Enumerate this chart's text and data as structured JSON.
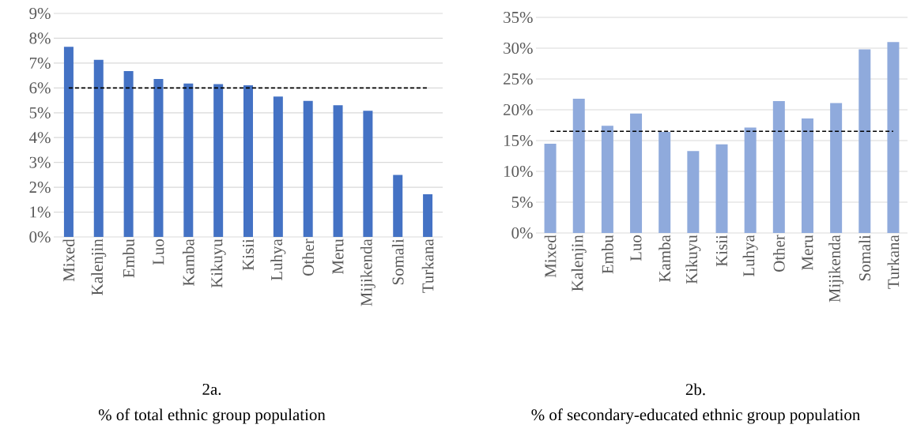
{
  "chart_data": [
    {
      "type": "bar",
      "title": "2a.",
      "subtitle": "% of total ethnic group population",
      "categories": [
        "Mixed",
        "Kalenjin",
        "Embu",
        "Luo",
        "Kamba",
        "Kikuyu",
        "Kisii",
        "Luhya",
        "Other",
        "Meru",
        "Mijikenda",
        "Somali",
        "Turkana"
      ],
      "values": [
        7.66,
        7.13,
        6.68,
        6.36,
        6.18,
        6.15,
        6.11,
        5.65,
        5.48,
        5.3,
        5.08,
        2.5,
        1.72
      ],
      "color": "#4472c4",
      "ylim": [
        0,
        9
      ],
      "yticks": [
        {
          "value": 0,
          "label": "0%"
        },
        {
          "value": 1,
          "label": "1%"
        },
        {
          "value": 2,
          "label": "2%"
        },
        {
          "value": 3,
          "label": "3%"
        },
        {
          "value": 4,
          "label": "4%"
        },
        {
          "value": 5,
          "label": "5%"
        },
        {
          "value": 6,
          "label": "6%"
        },
        {
          "value": 7,
          "label": "7%"
        },
        {
          "value": 8,
          "label": "8%"
        },
        {
          "value": 9,
          "label": "9%"
        }
      ],
      "grid": "y",
      "ref_lines": [
        {
          "axis": "y",
          "value": 6,
          "color": "#000000",
          "line_style": "dashed"
        }
      ]
    },
    {
      "type": "bar",
      "title": "2b.",
      "subtitle": "% of secondary-educated ethnic group population",
      "categories": [
        "Mixed",
        "Kalenjin",
        "Embu",
        "Luo",
        "Kamba",
        "Kikuyu",
        "Kisii",
        "Luhya",
        "Other",
        "Meru",
        "Mijikenda",
        "Somali",
        "Turkana"
      ],
      "values": [
        14.5,
        21.8,
        17.4,
        19.4,
        16.4,
        13.3,
        14.4,
        17.1,
        21.4,
        18.6,
        21.1,
        29.8,
        31.0
      ],
      "color": "#8faadc",
      "ylim": [
        0,
        35
      ],
      "yticks": [
        {
          "value": 0,
          "label": "0%"
        },
        {
          "value": 5,
          "label": "5%"
        },
        {
          "value": 10,
          "label": "10%"
        },
        {
          "value": 15,
          "label": "15%"
        },
        {
          "value": 20,
          "label": "20%"
        },
        {
          "value": 25,
          "label": "25%"
        },
        {
          "value": 30,
          "label": "30%"
        },
        {
          "value": 35,
          "label": "35%"
        }
      ],
      "grid": "y",
      "ref_lines": [
        {
          "axis": "y",
          "value": 16.5,
          "color": "#000000",
          "line_style": "dashed"
        }
      ]
    }
  ]
}
